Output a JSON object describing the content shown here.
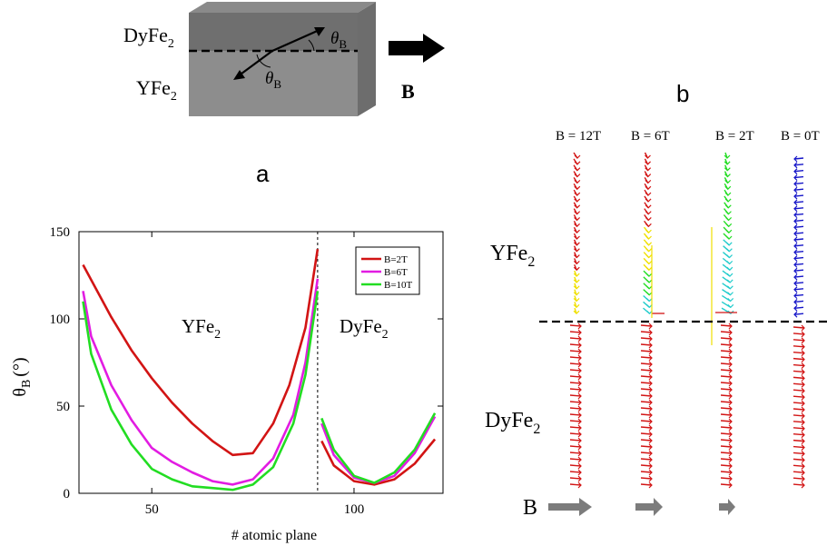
{
  "schematic": {
    "top_label": "DyFe",
    "bottom_label": "YFe",
    "sub": "2",
    "angle_symbol": "θ",
    "angle_sub": "B",
    "field_label": "B"
  },
  "panel_labels": {
    "a": "a",
    "b": "b"
  },
  "colors": {
    "red": "#d21414",
    "magenta": "#e21ce2",
    "green": "#22dd22",
    "yellow": "#f0e000",
    "cyan": "#22cccc",
    "blue": "#1515c8",
    "gray": "#7c7c7c"
  },
  "chart_data": [
    {
      "type": "line",
      "xlabel": "# atomic plane",
      "ylabel": "θ",
      "ylabel_sub": "B",
      "ylabel_unit": "(°)",
      "xlim": [
        32,
        122
      ],
      "ylim": [
        0,
        150
      ],
      "xticks": [
        50,
        100
      ],
      "yticks": [
        0,
        50,
        100,
        150
      ],
      "interface_x": 91,
      "region_labels": [
        {
          "text": "YFe",
          "sub": "2"
        },
        {
          "text": "DyFe",
          "sub": "2"
        }
      ],
      "legend_position": "top-right",
      "series": [
        {
          "name": "B=2T",
          "color": "#d21414",
          "x": [
            33,
            40,
            45,
            50,
            55,
            60,
            65,
            70,
            75,
            80,
            84,
            88,
            91,
            92,
            95,
            100,
            105,
            110,
            115,
            120
          ],
          "y": [
            131,
            101,
            82,
            66,
            52,
            40,
            30,
            22,
            23,
            40,
            62,
            95,
            140,
            30,
            16,
            7,
            5,
            8,
            17,
            31
          ]
        },
        {
          "name": "B=6T",
          "color": "#e21ce2",
          "x": [
            33,
            35,
            40,
            45,
            50,
            55,
            60,
            65,
            70,
            75,
            80,
            85,
            88,
            91,
            92,
            95,
            100,
            105,
            110,
            115,
            120
          ],
          "y": [
            116,
            90,
            62,
            42,
            26,
            18,
            12,
            7,
            5,
            8,
            20,
            45,
            75,
            123,
            40,
            22,
            9,
            6,
            10,
            23,
            44
          ]
        },
        {
          "name": "B=10T",
          "color": "#22dd22",
          "x": [
            33,
            35,
            40,
            45,
            50,
            55,
            60,
            65,
            70,
            75,
            80,
            85,
            88,
            91,
            92,
            95,
            100,
            105,
            110,
            115,
            120
          ],
          "y": [
            110,
            80,
            48,
            28,
            14,
            8,
            4,
            3,
            2,
            5,
            15,
            40,
            68,
            116,
            43,
            25,
            10,
            6,
            12,
            25,
            46
          ]
        }
      ]
    }
  ],
  "panel_b": {
    "fields": [
      "B = 12T",
      "B = 6T",
      "B = 2T",
      "B = 0T"
    ],
    "region_top": {
      "text": "YFe",
      "sub": "2"
    },
    "region_bottom": {
      "text": "DyFe",
      "sub": "2"
    },
    "field_label": "B"
  }
}
